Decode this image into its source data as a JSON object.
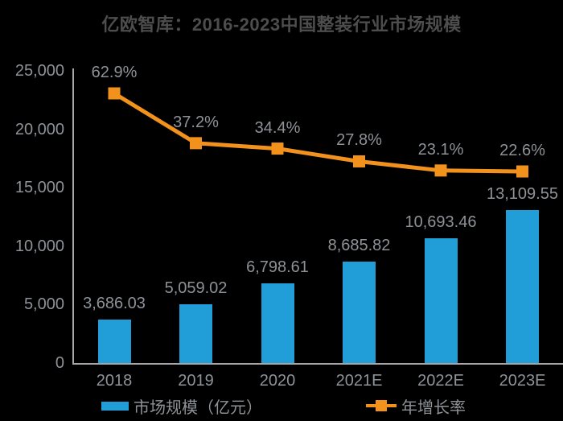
{
  "colors": {
    "bg": "#000000",
    "title": "#4d4d4d",
    "label": "#8e9296",
    "axis": "#a6a6a6",
    "bar": "#219ed8",
    "line": "#f2921d"
  },
  "chart_data": {
    "type": "bar+line",
    "title": "亿欧智库：2016-2023中国整装行业市场规模",
    "categories": [
      "2018",
      "2019",
      "2020",
      "2021E",
      "2022E",
      "2023E"
    ],
    "series": [
      {
        "name": "市场规模（亿元）",
        "type": "bar",
        "values": [
          3686.03,
          5059.02,
          6798.61,
          8685.82,
          10693.46,
          13109.55
        ],
        "labels": [
          "3,686.03",
          "5,059.02",
          "6,798.61",
          "8,685.82",
          "10,693.46",
          "13,109.55"
        ]
      },
      {
        "name": "年增长率",
        "type": "line",
        "values": [
          62.9,
          37.2,
          34.4,
          27.8,
          23.1,
          22.6
        ],
        "labels": [
          "62.9%",
          "37.2%",
          "34.4%",
          "27.8%",
          "23.1%",
          "22.6%"
        ]
      }
    ],
    "y_axis": {
      "min": 0,
      "max": 25000,
      "ticks": [
        "25,000",
        "20,000",
        "15,000",
        "10,000",
        "5,000",
        "0"
      ],
      "tick_values": [
        25000,
        20000,
        15000,
        10000,
        5000,
        0
      ]
    },
    "grid": false,
    "legend_position": "bottom",
    "legend": [
      {
        "label": "市场规模（亿元）",
        "swatch": "bar"
      },
      {
        "label": "年增长率",
        "swatch": "line"
      }
    ]
  }
}
